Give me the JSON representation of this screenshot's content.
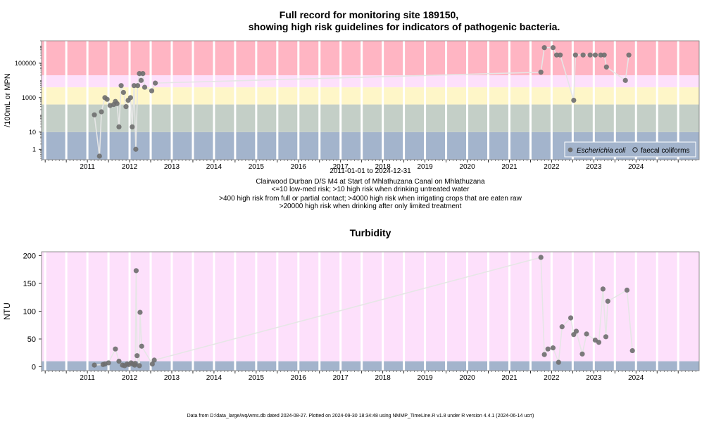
{
  "chart_data": [
    {
      "type": "scatter",
      "title": "Full record for monitoring site 189150,",
      "subtitle": "showing high risk guidelines for indicators of pathogenic bacteria.",
      "ylabel": "/100mL or MPN",
      "y_scale": "log",
      "ylim": [
        0.25,
        2000000
      ],
      "xlim": [
        "2010-06-01",
        "2025-12-31"
      ],
      "x_tick_labels": [
        "2011",
        "2012",
        "2013",
        "2014",
        "2015",
        "2016",
        "2017",
        "2018",
        "2019",
        "2020",
        "2021",
        "2022",
        "2023",
        "2024"
      ],
      "y_tick_labels": [
        "1",
        "10",
        "1000",
        "100000"
      ],
      "y_ticks": [
        1,
        10,
        1000,
        100000
      ],
      "bands": [
        {
          "from": 0.25,
          "to": 10,
          "color": "#a3b4cc"
        },
        {
          "from": 10,
          "to": 400,
          "color": "#c4cfc7"
        },
        {
          "from": 400,
          "to": 4000,
          "color": "#fef6c8"
        },
        {
          "from": 4000,
          "to": 20000,
          "color": "#fde0fb"
        },
        {
          "from": 20000,
          "to": 2000000,
          "color": "#ffb5c3"
        }
      ],
      "series": [
        {
          "name": "Escherichia coli",
          "marker": "filled-circle",
          "color": "#666666",
          "points": [
            [
              "2011-09-01",
              100
            ],
            [
              "2011-10-15",
              0.4
            ],
            [
              "2011-11-01",
              150
            ],
            [
              "2011-12-01",
              1000
            ],
            [
              "2011-12-20",
              800
            ],
            [
              "2012-01-15",
              350
            ],
            [
              "2012-02-15",
              400
            ],
            [
              "2012-03-01",
              600
            ],
            [
              "2012-03-15",
              450
            ],
            [
              "2012-04-01",
              20
            ],
            [
              "2012-04-20",
              5000
            ],
            [
              "2012-05-10",
              2000
            ],
            [
              "2012-06-01",
              300
            ],
            [
              "2012-06-20",
              700
            ],
            [
              "2012-07-10",
              1000
            ],
            [
              "2012-07-25",
              20
            ],
            [
              "2012-08-10",
              5000
            ],
            [
              "2012-08-25",
              1
            ],
            [
              "2012-09-10",
              5000
            ],
            [
              "2012-09-25",
              25000
            ],
            [
              "2012-10-10",
              10000
            ],
            [
              "2012-10-25",
              25000
            ],
            [
              "2012-11-10",
              4000
            ],
            [
              "2013-01-10",
              2500
            ],
            [
              "2013-02-10",
              7000
            ],
            [
              "2022-04-01",
              30000
            ],
            [
              "2022-05-01",
              800000
            ],
            [
              "2022-07-15",
              800000
            ],
            [
              "2022-08-15",
              300000
            ],
            [
              "2022-09-15",
              300000
            ],
            [
              "2023-01-10",
              700
            ],
            [
              "2023-01-25",
              300000
            ],
            [
              "2023-04-01",
              300000
            ],
            [
              "2023-06-01",
              300000
            ],
            [
              "2023-07-15",
              300000
            ],
            [
              "2023-09-01",
              300000
            ],
            [
              "2023-10-01",
              300000
            ],
            [
              "2023-10-20",
              60000
            ],
            [
              "2024-04-01",
              10000
            ],
            [
              "2024-05-01",
              300000
            ]
          ]
        },
        {
          "name": "faecal coliforms",
          "marker": "open-circle",
          "color": "#000000",
          "points": []
        }
      ],
      "legend_position": "bottom-right",
      "grid": true,
      "notes": [
        "2011-01-01 to 2024-12-31",
        "Clairwood Durban D/S M4 at Start of Mhlathuzana Canal on Mhlathuzana",
        "<=10 low-med risk; >10 high risk when drinking untreated water",
        ">400 high risk from full or partial contact; >4000 high risk when irrigating crops that are eaten raw",
        ">20000 high risk when drinking after only limited treatment"
      ]
    },
    {
      "type": "line",
      "title": "Turbidity",
      "ylabel": "NTU",
      "ylim": [
        -7,
        207
      ],
      "xlim": [
        "2010-06-01",
        "2025-12-31"
      ],
      "x_tick_labels": [
        "2011",
        "2012",
        "2013",
        "2014",
        "2015",
        "2016",
        "2017",
        "2018",
        "2019",
        "2020",
        "2021",
        "2022",
        "2023",
        "2024"
      ],
      "y_tick_labels": [
        "0",
        "50",
        "100",
        "150",
        "200"
      ],
      "y_ticks": [
        0,
        50,
        100,
        150,
        200
      ],
      "bands": [
        {
          "from": -7,
          "to": 10,
          "color": "#a3b4cc"
        },
        {
          "from": 10,
          "to": 207,
          "color": "#fde0fb"
        }
      ],
      "series": [
        {
          "name": "",
          "color": "#666666",
          "points": [
            [
              "2011-09-01",
              3
            ],
            [
              "2011-11-15",
              4
            ],
            [
              "2011-12-01",
              5
            ],
            [
              "2012-01-01",
              7
            ],
            [
              "2012-03-01",
              32
            ],
            [
              "2012-04-01",
              10
            ],
            [
              "2012-05-01",
              3
            ],
            [
              "2012-05-20",
              2
            ],
            [
              "2012-06-10",
              5
            ],
            [
              "2012-06-25",
              4
            ],
            [
              "2012-07-15",
              7
            ],
            [
              "2012-07-30",
              5
            ],
            [
              "2012-08-15",
              3
            ],
            [
              "2012-08-20",
              6
            ],
            [
              "2012-08-28",
              173
            ],
            [
              "2012-09-05",
              20
            ],
            [
              "2012-09-25",
              2
            ],
            [
              "2012-10-01",
              98
            ],
            [
              "2012-10-15",
              37
            ],
            [
              "2013-01-15",
              5
            ],
            [
              "2013-02-01",
              12
            ],
            [
              "2022-04-01",
              197
            ],
            [
              "2022-05-01",
              22
            ],
            [
              "2022-06-01",
              32
            ],
            [
              "2022-07-15",
              34
            ],
            [
              "2022-09-01",
              8
            ],
            [
              "2022-10-01",
              72
            ],
            [
              "2022-12-15",
              88
            ],
            [
              "2023-01-10",
              58
            ],
            [
              "2023-02-01",
              64
            ],
            [
              "2023-03-25",
              23
            ],
            [
              "2023-05-01",
              59
            ],
            [
              "2023-07-15",
              48
            ],
            [
              "2023-08-15",
              44
            ],
            [
              "2023-09-20",
              140
            ],
            [
              "2023-10-15",
              54
            ],
            [
              "2023-11-01",
              118
            ],
            [
              "2024-04-15",
              138
            ],
            [
              "2024-06-01",
              29
            ]
          ]
        }
      ],
      "grid": true
    }
  ],
  "footer": "Data from D:/data_large/wq/wms.db dated 2024-08-27. Plotted on 2024-09-30 18:34:48 using NMMP_TimeLine.R v1.8 under R version 4.4.1 (2024-06-14 ucrt)"
}
